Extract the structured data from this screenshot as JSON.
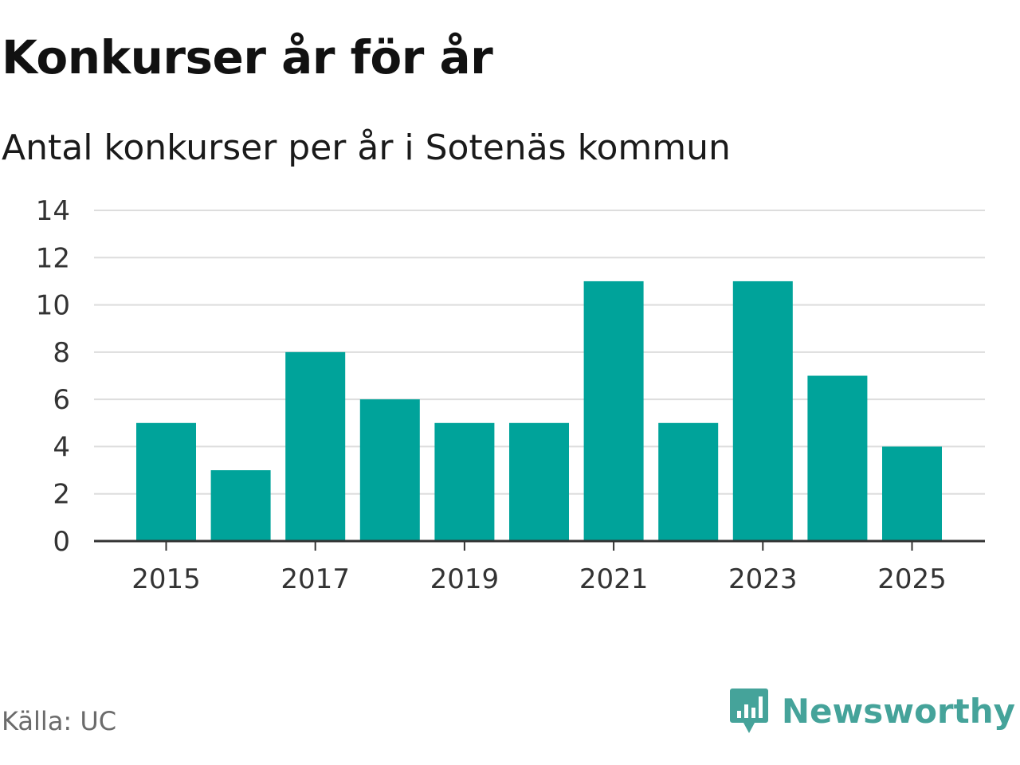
{
  "header": {
    "title": "Konkurser år för år",
    "subtitle": "Antal konkurser per år i Sotenäs kommun"
  },
  "footer": {
    "source": "Källa: UC",
    "brand": "Newsworthy",
    "brand_icon": "newsworthy-logo-icon"
  },
  "colors": {
    "bar": "#00a39a",
    "grid": "#dddddd",
    "axis": "#333333",
    "brand": "#45a39a"
  },
  "chart_data": {
    "type": "bar",
    "categories": [
      2015,
      2016,
      2017,
      2018,
      2019,
      2020,
      2021,
      2022,
      2023,
      2024,
      2025
    ],
    "values": [
      5,
      3,
      8,
      6,
      5,
      5,
      11,
      5,
      11,
      7,
      4
    ],
    "ylim": [
      0,
      14
    ],
    "yticks": [
      0,
      2,
      4,
      6,
      8,
      10,
      12,
      14
    ],
    "xticks": [
      2015,
      2017,
      2019,
      2021,
      2023,
      2025
    ],
    "grid": true,
    "legend": "none"
  }
}
